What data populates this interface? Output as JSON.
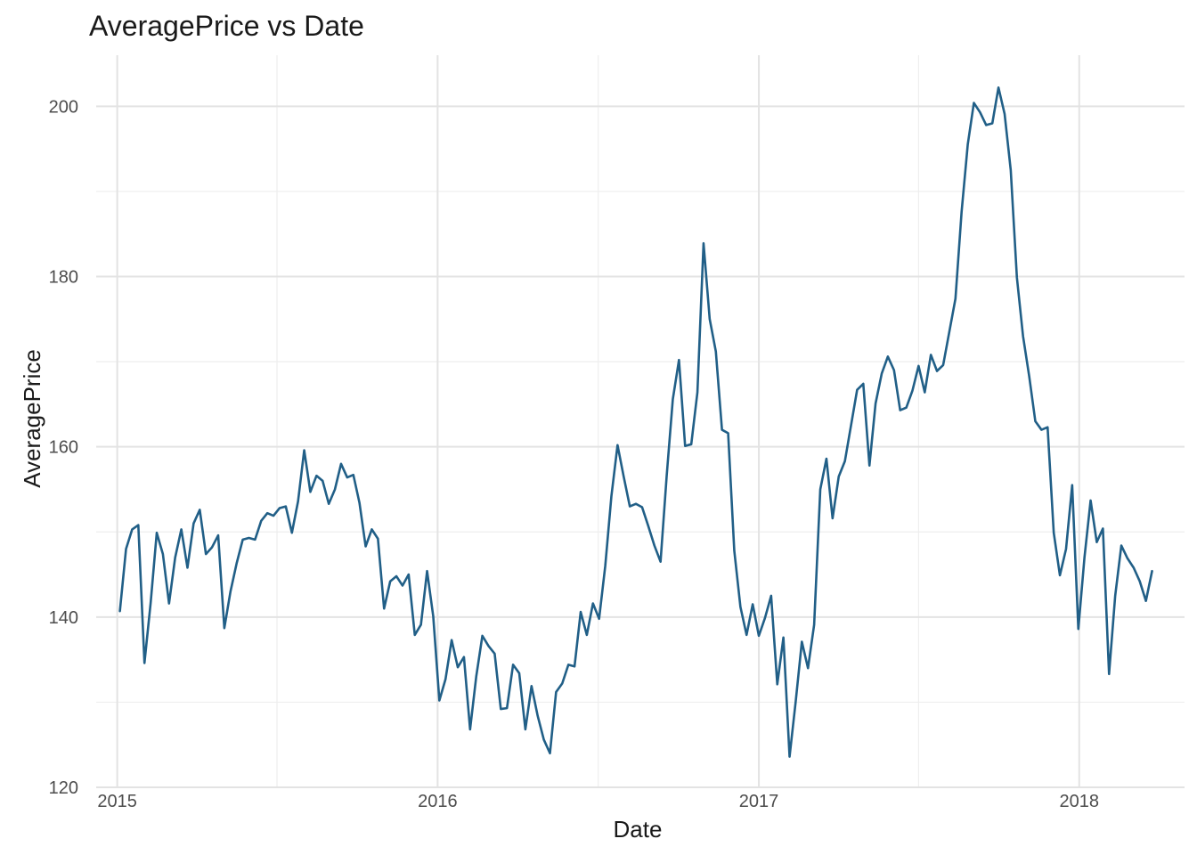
{
  "chart_data": {
    "type": "line",
    "title": "AveragePrice vs Date",
    "xlabel": "Date",
    "ylabel": "AveragePrice",
    "x_ticks": [
      "2015",
      "2016",
      "2017",
      "2018"
    ],
    "y_ticks": [
      "120",
      "140",
      "160",
      "180",
      "200"
    ],
    "ylim": [
      120,
      206
    ],
    "xlim": [
      "2014-12-08",
      "2018-05-01"
    ],
    "grid": true,
    "line_color": "#215f87",
    "series": [
      {
        "x": [
          "2015-01-04",
          "2015-01-11",
          "2015-01-18",
          "2015-01-25",
          "2015-02-01",
          "2015-02-08",
          "2015-02-15",
          "2015-02-22",
          "2015-03-01",
          "2015-03-08",
          "2015-03-15",
          "2015-03-22",
          "2015-03-29",
          "2015-04-05",
          "2015-04-12",
          "2015-04-19",
          "2015-04-26",
          "2015-05-03",
          "2015-05-10",
          "2015-05-17",
          "2015-05-24",
          "2015-05-31",
          "2015-06-07",
          "2015-06-14",
          "2015-06-21",
          "2015-06-28",
          "2015-07-05",
          "2015-07-12",
          "2015-07-19",
          "2015-07-26",
          "2015-08-02",
          "2015-08-09",
          "2015-08-16",
          "2015-08-23",
          "2015-08-30",
          "2015-09-06",
          "2015-09-13",
          "2015-09-20",
          "2015-09-27",
          "2015-10-04",
          "2015-10-11",
          "2015-10-18",
          "2015-10-25",
          "2015-11-01",
          "2015-11-08",
          "2015-11-15",
          "2015-11-22",
          "2015-11-29",
          "2015-12-06",
          "2015-12-13",
          "2015-12-20",
          "2015-12-27",
          "2016-01-03",
          "2016-01-10",
          "2016-01-17",
          "2016-01-24",
          "2016-01-31",
          "2016-02-07",
          "2016-02-14",
          "2016-02-21",
          "2016-02-28",
          "2016-03-06",
          "2016-03-13",
          "2016-03-20",
          "2016-03-27",
          "2016-04-03",
          "2016-04-10",
          "2016-04-17",
          "2016-04-24",
          "2016-05-01",
          "2016-05-08",
          "2016-05-15",
          "2016-05-22",
          "2016-05-29",
          "2016-06-05",
          "2016-06-12",
          "2016-06-19",
          "2016-06-26",
          "2016-07-03",
          "2016-07-10",
          "2016-07-17",
          "2016-07-24",
          "2016-07-31",
          "2016-08-07",
          "2016-08-14",
          "2016-08-21",
          "2016-08-28",
          "2016-09-04",
          "2016-09-11",
          "2016-09-18",
          "2016-09-25",
          "2016-10-02",
          "2016-10-09",
          "2016-10-16",
          "2016-10-23",
          "2016-10-30",
          "2016-11-06",
          "2016-11-13",
          "2016-11-20",
          "2016-11-27",
          "2016-12-04",
          "2016-12-11",
          "2016-12-18",
          "2016-12-25",
          "2017-01-01",
          "2017-01-08",
          "2017-01-15",
          "2017-01-22",
          "2017-01-29",
          "2017-02-05",
          "2017-02-12",
          "2017-02-19",
          "2017-02-26",
          "2017-03-05",
          "2017-03-12",
          "2017-03-19",
          "2017-03-26",
          "2017-04-02",
          "2017-04-09",
          "2017-04-16",
          "2017-04-23",
          "2017-04-30",
          "2017-05-07",
          "2017-05-14",
          "2017-05-21",
          "2017-05-28",
          "2017-06-04",
          "2017-06-11",
          "2017-06-18",
          "2017-06-25",
          "2017-07-02",
          "2017-07-09",
          "2017-07-16",
          "2017-07-23",
          "2017-07-30",
          "2017-08-06",
          "2017-08-13",
          "2017-08-20",
          "2017-08-27",
          "2017-09-03",
          "2017-09-10",
          "2017-09-17",
          "2017-09-24",
          "2017-10-01",
          "2017-10-08",
          "2017-10-15",
          "2017-10-22",
          "2017-10-29",
          "2017-11-05",
          "2017-11-12",
          "2017-11-19",
          "2017-11-26",
          "2017-12-03",
          "2017-12-10",
          "2017-12-17",
          "2017-12-24",
          "2017-12-31",
          "2018-01-07",
          "2018-01-14",
          "2018-01-21",
          "2018-01-28",
          "2018-02-04",
          "2018-02-11",
          "2018-02-18",
          "2018-02-25",
          "2018-03-04",
          "2018-03-11",
          "2018-03-18",
          "2018-03-25"
        ],
        "y": [
          140.7,
          148.0,
          150.3,
          150.8,
          134.6,
          141.6,
          149.9,
          147.4,
          141.6,
          147.0,
          150.3,
          145.8,
          151.0,
          152.6,
          147.4,
          148.2,
          149.6,
          138.7,
          143.0,
          146.3,
          149.1,
          149.3,
          149.1,
          151.3,
          152.2,
          151.9,
          152.8,
          153.0,
          149.9,
          153.6,
          159.6,
          154.7,
          156.6,
          156.0,
          153.3,
          155.0,
          158.0,
          156.4,
          156.7,
          153.4,
          148.3,
          150.3,
          149.2,
          141.0,
          144.2,
          144.8,
          143.7,
          145.0,
          137.9,
          139.1,
          145.4,
          140.1,
          130.2,
          132.7,
          137.3,
          134.1,
          135.3,
          126.8,
          133.0,
          137.8,
          136.6,
          135.7,
          129.2,
          129.3,
          134.4,
          133.4,
          126.8,
          131.9,
          128.4,
          125.6,
          124.0,
          131.2,
          132.2,
          134.4,
          134.2,
          140.6,
          137.9,
          141.6,
          139.8,
          146.0,
          154.2,
          160.2,
          156.5,
          153.0,
          153.3,
          152.9,
          150.7,
          148.4,
          146.5,
          156.6,
          165.6,
          170.2,
          160.1,
          160.3,
          166.4,
          183.9,
          175.0,
          171.2,
          162.0,
          161.6,
          147.8,
          141.2,
          137.9,
          141.5,
          137.8,
          139.9,
          142.5,
          132.1,
          137.6,
          123.6,
          130.1,
          137.1,
          134.0,
          139.1,
          155.0,
          158.6,
          151.6,
          156.5,
          158.3,
          162.5,
          166.7,
          167.4,
          157.8,
          165.1,
          168.6,
          170.6,
          169.0,
          164.3,
          164.6,
          166.6,
          169.5,
          166.4,
          170.8,
          168.9,
          169.6,
          173.5,
          177.4,
          187.6,
          195.5,
          200.4,
          199.3,
          197.8,
          198.0,
          202.2,
          199.1,
          192.5,
          179.9,
          173.0,
          168.3,
          163.0,
          162.0,
          162.3,
          149.9,
          144.9,
          148.0,
          155.5,
          138.6,
          147.0,
          153.7,
          148.8,
          150.4,
          133.3,
          142.5,
          148.4,
          146.9,
          145.8,
          144.2,
          141.9,
          145.4
        ]
      }
    ]
  }
}
